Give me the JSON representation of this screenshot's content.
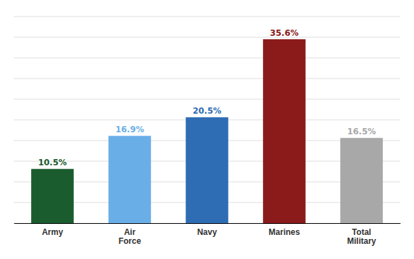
{
  "chart_data": {
    "type": "bar",
    "categories": [
      "Army",
      "Air\nForce",
      "Navy",
      "Marines",
      "Total\nMilitary"
    ],
    "values": [
      10.5,
      16.9,
      20.5,
      35.6,
      16.5
    ],
    "value_labels": [
      "10.5%",
      "16.9%",
      "20.5%",
      "35.6%",
      "16.5%"
    ],
    "colors": [
      "#1a5c2e",
      "#6aaee8",
      "#2e6db4",
      "#8b1a1a",
      "#a8a8a8"
    ],
    "ylim": [
      0,
      40
    ],
    "yticks": [
      0,
      4,
      8,
      12,
      16,
      20,
      24,
      28,
      32,
      36,
      40
    ],
    "grid": true,
    "data_labels": true,
    "tick_labels": "x"
  }
}
